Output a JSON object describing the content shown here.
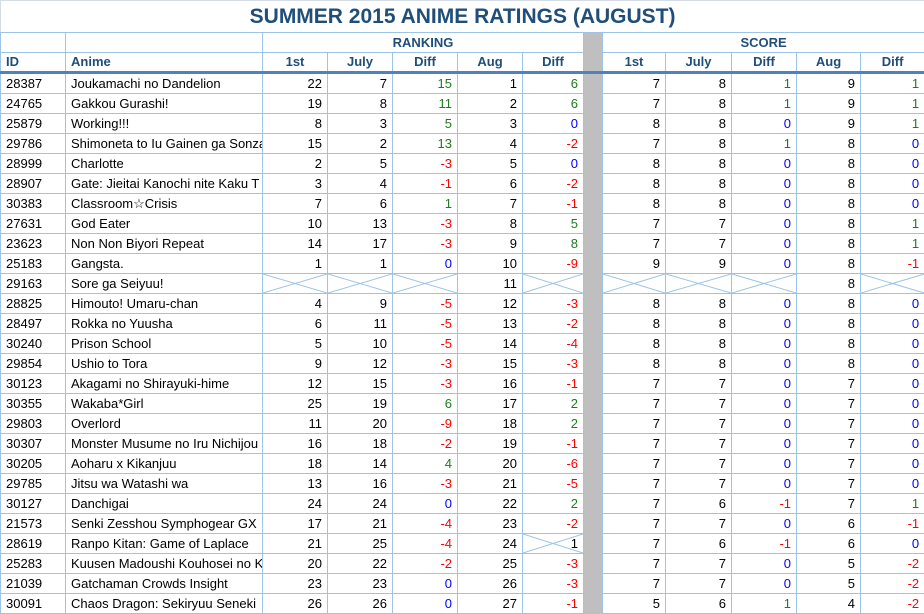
{
  "title": "SUMMER 2015 ANIME RATINGS (AUGUST)",
  "groups": {
    "ranking": "RANKING",
    "score": "SCORE"
  },
  "columns": {
    "id": "ID",
    "anime": "Anime",
    "sub": [
      "1st",
      "July",
      "Diff",
      "Aug",
      "Diff"
    ]
  },
  "colors": {
    "header_text": "#1F4E79",
    "grid_line": "#9DC3E6",
    "thick_rule": "#4F81BD",
    "separator_fill": "#BFBFBF",
    "positive_diff": "#1E7B1E",
    "negative_diff": "#FF0000",
    "zero_diff": "#0000FF",
    "value_text": "#000000"
  },
  "rows": [
    {
      "id": "28387",
      "anime": "Joukamachi no Dandelion",
      "ranking": [
        22,
        7,
        15,
        1,
        6
      ],
      "score": [
        7,
        8,
        1,
        9,
        1
      ]
    },
    {
      "id": "24765",
      "anime": "Gakkou Gurashi!",
      "ranking": [
        19,
        8,
        11,
        2,
        6
      ],
      "score": [
        7,
        8,
        1,
        9,
        1
      ]
    },
    {
      "id": "25879",
      "anime": "Working!!!",
      "ranking": [
        8,
        3,
        5,
        3,
        0
      ],
      "score": [
        8,
        8,
        0,
        9,
        1
      ]
    },
    {
      "id": "29786",
      "anime": "Shimoneta to Iu Gainen ga Sonza",
      "ranking": [
        15,
        2,
        13,
        4,
        -2
      ],
      "score": [
        7,
        8,
        1,
        8,
        0
      ]
    },
    {
      "id": "28999",
      "anime": "Charlotte",
      "ranking": [
        2,
        5,
        -3,
        5,
        0
      ],
      "score": [
        8,
        8,
        0,
        8,
        0
      ]
    },
    {
      "id": "28907",
      "anime": "Gate: Jieitai Kanochi nite Kaku T",
      "ranking": [
        3,
        4,
        -1,
        6,
        -2
      ],
      "score": [
        8,
        8,
        0,
        8,
        0
      ]
    },
    {
      "id": "30383",
      "anime": "Classroom☆Crisis",
      "ranking": [
        7,
        6,
        1,
        7,
        -1
      ],
      "score": [
        8,
        8,
        0,
        8,
        0
      ]
    },
    {
      "id": "27631",
      "anime": "God Eater",
      "ranking": [
        10,
        13,
        -3,
        8,
        5
      ],
      "score": [
        7,
        7,
        0,
        8,
        1
      ]
    },
    {
      "id": "23623",
      "anime": "Non Non Biyori Repeat",
      "ranking": [
        14,
        17,
        -3,
        9,
        8
      ],
      "score": [
        7,
        7,
        0,
        8,
        1
      ]
    },
    {
      "id": "25183",
      "anime": "Gangsta.",
      "ranking": [
        1,
        1,
        0,
        10,
        -9
      ],
      "score": [
        9,
        9,
        0,
        8,
        -1
      ]
    },
    {
      "id": "29163",
      "anime": "Sore ga Seiyuu!",
      "ranking": [
        null,
        null,
        null,
        11,
        null
      ],
      "score": [
        null,
        null,
        null,
        8,
        null
      ]
    },
    {
      "id": "28825",
      "anime": "Himouto! Umaru-chan",
      "ranking": [
        4,
        9,
        -5,
        12,
        -3
      ],
      "score": [
        8,
        8,
        0,
        8,
        0
      ]
    },
    {
      "id": "28497",
      "anime": "Rokka no Yuusha",
      "ranking": [
        6,
        11,
        -5,
        13,
        -2
      ],
      "score": [
        8,
        8,
        0,
        8,
        0
      ]
    },
    {
      "id": "30240",
      "anime": "Prison School",
      "ranking": [
        5,
        10,
        -5,
        14,
        -4
      ],
      "score": [
        8,
        8,
        0,
        8,
        0
      ]
    },
    {
      "id": "29854",
      "anime": "Ushio to Tora",
      "ranking": [
        9,
        12,
        -3,
        15,
        -3
      ],
      "score": [
        8,
        8,
        0,
        8,
        0
      ]
    },
    {
      "id": "30123",
      "anime": "Akagami no Shirayuki-hime",
      "ranking": [
        12,
        15,
        -3,
        16,
        -1
      ],
      "score": [
        7,
        7,
        0,
        7,
        0
      ]
    },
    {
      "id": "30355",
      "anime": "Wakaba*Girl",
      "ranking": [
        25,
        19,
        6,
        17,
        2
      ],
      "score": [
        7,
        7,
        0,
        7,
        0
      ]
    },
    {
      "id": "29803",
      "anime": "Overlord",
      "ranking": [
        11,
        20,
        -9,
        18,
        2
      ],
      "score": [
        7,
        7,
        0,
        7,
        0
      ]
    },
    {
      "id": "30307",
      "anime": "Monster Musume no Iru Nichijou",
      "ranking": [
        16,
        18,
        -2,
        19,
        -1
      ],
      "score": [
        7,
        7,
        0,
        7,
        0
      ]
    },
    {
      "id": "30205",
      "anime": "Aoharu x Kikanjuu",
      "ranking": [
        18,
        14,
        4,
        20,
        -6
      ],
      "score": [
        7,
        7,
        0,
        7,
        0
      ]
    },
    {
      "id": "29785",
      "anime": "Jitsu wa Watashi wa",
      "ranking": [
        13,
        16,
        -3,
        21,
        -5
      ],
      "score": [
        7,
        7,
        0,
        7,
        0
      ]
    },
    {
      "id": "30127",
      "anime": "Danchigai",
      "ranking": [
        24,
        24,
        0,
        22,
        2
      ],
      "score": [
        7,
        6,
        -1,
        7,
        1
      ]
    },
    {
      "id": "21573",
      "anime": "Senki Zesshou Symphogear GX",
      "ranking": [
        17,
        21,
        -4,
        23,
        -2
      ],
      "score": [
        7,
        7,
        0,
        6,
        -1
      ]
    },
    {
      "id": "28619",
      "anime": "Ranpo Kitan: Game of Laplace",
      "ranking": [
        21,
        25,
        -4,
        24,
        {
          "v": 1,
          "x": true,
          "c": "plain"
        }
      ],
      "score": [
        7,
        6,
        -1,
        6,
        0
      ]
    },
    {
      "id": "25283",
      "anime": "Kuusen Madoushi Kouhosei no K",
      "ranking": [
        20,
        22,
        -2,
        25,
        -3
      ],
      "score": [
        7,
        7,
        0,
        5,
        -2
      ]
    },
    {
      "id": "21039",
      "anime": "Gatchaman Crowds Insight",
      "ranking": [
        23,
        23,
        0,
        26,
        -3
      ],
      "score": [
        7,
        7,
        0,
        5,
        -2
      ]
    },
    {
      "id": "30091",
      "anime": "Chaos Dragon: Sekiryuu Seneki",
      "ranking": [
        26,
        26,
        0,
        27,
        -1
      ],
      "score": [
        5,
        6,
        1,
        4,
        -2
      ]
    }
  ]
}
